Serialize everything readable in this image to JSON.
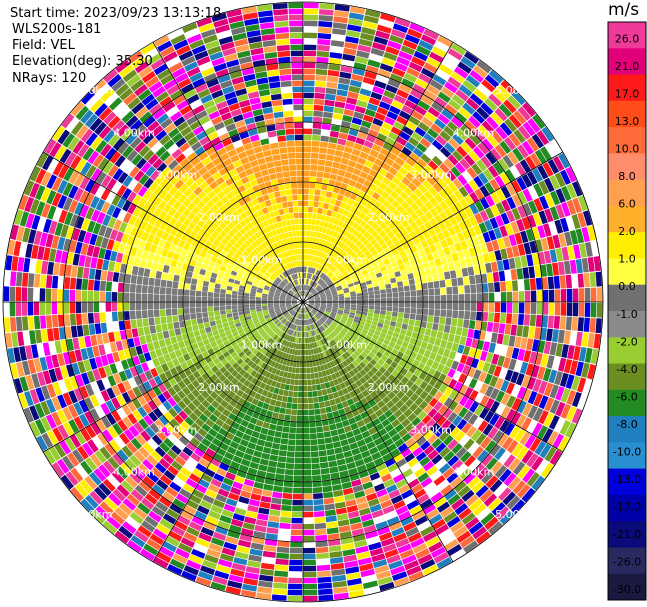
{
  "header": {
    "start_time": "Start time: 2023/09/23 13:13:18",
    "instrument": "WLS200s-181",
    "field": "Field: VEL",
    "elevation": "Elevation(deg): 35.30",
    "nrays": "NRays: 120"
  },
  "colorbar": {
    "unit": "m/s",
    "ticks": [
      "26.0",
      "21.0",
      "17.0",
      "13.0",
      "10.0",
      "8.0",
      "6.0",
      "2.0",
      "1.0",
      "0.0",
      "-1.0",
      "-2.0",
      "-4.0",
      "-6.0",
      "-8.0",
      "-10.0",
      "-13.0",
      "-17.0",
      "-21.0",
      "-26.0",
      "-30.0"
    ],
    "colors": [
      "#ef3a9a",
      "#e2007a",
      "#ff1a1a",
      "#ff4d1a",
      "#ff6a3a",
      "#ff8c6a",
      "#ffa050",
      "#ffb02a",
      "#ffee00",
      "#ffff40",
      "#707070",
      "#8a8a8a",
      "#9acd32",
      "#6b8e23",
      "#228b22",
      "#1f7fbf",
      "#2a8fd0",
      "#0000dd",
      "#0000aa",
      "#0a0a7a",
      "#2a2a60",
      "#1a1a40"
    ]
  },
  "chart_data": {
    "type": "heatmap",
    "projection": "polar PPI (plan position indicator)",
    "field": "VEL",
    "units": "m/s",
    "nrays": 120,
    "range_rings_labels": [
      "1.00km",
      "2.00km",
      "3.00km",
      "4.00km",
      "5.00km"
    ],
    "value_range": [
      -30.0,
      26.0
    ],
    "description_of_pattern": "near-field radial velocity: positive (yellow/orange) to the north, negative (green) to the south, noisy random values beyond ~3 km"
  }
}
